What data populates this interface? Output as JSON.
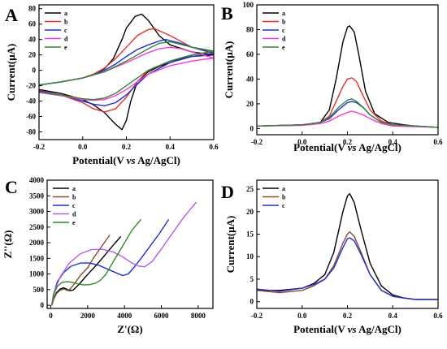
{
  "colors": {
    "a": "#000000",
    "b": "#e8302a",
    "c": "#1f2fd6",
    "d": "#ff33dd",
    "e": "#2e8b2e",
    "d_C": "#b35cf2",
    "b_D": "#8b4a2b"
  },
  "chart_data": [
    {
      "panel": "A",
      "type": "line",
      "xlabel": "Potential(V vs Ag/AgCl)",
      "ylabel": "Current(μA)",
      "xlim": [
        -0.2,
        0.6
      ],
      "ylim": [
        -90,
        85
      ],
      "xticks": [
        "-0.2",
        "0.0",
        "0.2",
        "0.4",
        "0.6"
      ],
      "yticks": [
        "-80",
        "-60",
        "-40",
        "-20",
        "0",
        "20",
        "40",
        "60",
        "80"
      ],
      "legend": "top-left",
      "grid": false,
      "series": [
        {
          "name": "a",
          "color": "#000000",
          "x": [
            -0.2,
            -0.1,
            0,
            0.05,
            0.1,
            0.14,
            0.18,
            0.2,
            0.24,
            0.27,
            0.3,
            0.35,
            0.4,
            0.5,
            0.6,
            0.55,
            0.5,
            0.45,
            0.4,
            0.35,
            0.3,
            0.25,
            0.22,
            0.2,
            0.18,
            0.15,
            0.1,
            0.05,
            0,
            -0.1,
            -0.2
          ],
          "y": [
            -19,
            -15,
            -10,
            -5,
            2,
            15,
            40,
            55,
            70,
            73,
            65,
            45,
            33,
            24,
            20,
            19,
            18,
            15,
            10,
            5,
            -2,
            -15,
            -40,
            -65,
            -77,
            -70,
            -55,
            -45,
            -38,
            -30,
            -25
          ]
        },
        {
          "name": "b",
          "color": "#e8302a",
          "x": [
            -0.2,
            -0.1,
            0,
            0.05,
            0.1,
            0.15,
            0.2,
            0.25,
            0.3,
            0.33,
            0.4,
            0.5,
            0.6,
            0.5,
            0.4,
            0.3,
            0.25,
            0.2,
            0.15,
            0.1,
            0.05,
            0,
            -0.1,
            -0.2
          ],
          "y": [
            -19,
            -15,
            -10,
            -5,
            3,
            15,
            30,
            45,
            53,
            54,
            45,
            30,
            24,
            20,
            12,
            0,
            -15,
            -35,
            -50,
            -54,
            -50,
            -42,
            -32,
            -26
          ]
        },
        {
          "name": "c",
          "color": "#1f2fd6",
          "x": [
            -0.2,
            -0.1,
            0,
            0.05,
            0.1,
            0.15,
            0.2,
            0.25,
            0.3,
            0.35,
            0.38,
            0.45,
            0.5,
            0.6,
            0.5,
            0.4,
            0.3,
            0.25,
            0.2,
            0.15,
            0.1,
            0.05,
            0,
            -0.1,
            -0.2
          ],
          "y": [
            -19,
            -15,
            -10,
            -6,
            0,
            8,
            18,
            27,
            33,
            38,
            40,
            35,
            30,
            22,
            18,
            10,
            -5,
            -18,
            -32,
            -42,
            -46,
            -44,
            -40,
            -32,
            -27
          ]
        },
        {
          "name": "d",
          "color": "#ff33dd",
          "x": [
            -0.2,
            -0.1,
            0,
            0.1,
            0.2,
            0.3,
            0.35,
            0.4,
            0.45,
            0.5,
            0.6,
            0.5,
            0.4,
            0.3,
            0.2,
            0.15,
            0.1,
            0.05,
            0,
            -0.1,
            -0.2
          ],
          "y": [
            -19,
            -15,
            -10,
            -2,
            10,
            23,
            28,
            30,
            28,
            24,
            16,
            12,
            6,
            -5,
            -25,
            -33,
            -38,
            -39,
            -38,
            -33,
            -29
          ]
        },
        {
          "name": "e",
          "color": "#2e8b2e",
          "x": [
            -0.2,
            -0.1,
            0,
            0.1,
            0.2,
            0.3,
            0.35,
            0.4,
            0.5,
            0.6,
            0.5,
            0.4,
            0.3,
            0.2,
            0.15,
            0.1,
            0.05,
            0,
            -0.1,
            -0.2
          ],
          "y": [
            -19,
            -15,
            -10,
            -2,
            12,
            28,
            35,
            37,
            30,
            25,
            20,
            12,
            0,
            -20,
            -30,
            -36,
            -38,
            -37,
            -32,
            -28
          ]
        }
      ]
    },
    {
      "panel": "B",
      "type": "line",
      "xlabel": "Potential(V vs Ag/AgCl)",
      "ylabel": "Current(μA)",
      "xlim": [
        -0.2,
        0.6
      ],
      "ylim": [
        -5,
        100
      ],
      "xticks": [
        "-0.2",
        "0.0",
        "0.2",
        "0.4",
        "0.6"
      ],
      "yticks": [
        "0",
        "20",
        "40",
        "60",
        "80",
        "100"
      ],
      "legend": "top-left",
      "grid": false,
      "series": [
        {
          "name": "a",
          "color": "#000000",
          "x": [
            -0.2,
            0,
            0.08,
            0.12,
            0.15,
            0.18,
            0.2,
            0.21,
            0.23,
            0.25,
            0.28,
            0.32,
            0.38,
            0.45,
            0.5,
            0.6
          ],
          "y": [
            2,
            3,
            5,
            15,
            40,
            70,
            82,
            83,
            78,
            60,
            30,
            12,
            5,
            3,
            2,
            1
          ]
        },
        {
          "name": "b",
          "color": "#e8302a",
          "x": [
            -0.2,
            0,
            0.08,
            0.12,
            0.15,
            0.18,
            0.2,
            0.22,
            0.24,
            0.26,
            0.3,
            0.35,
            0.4,
            0.5,
            0.6
          ],
          "y": [
            2,
            3,
            5,
            10,
            22,
            34,
            40,
            41,
            38,
            30,
            15,
            6,
            3,
            2,
            1
          ]
        },
        {
          "name": "c",
          "color": "#1f2fd6",
          "x": [
            -0.2,
            0,
            0.08,
            0.12,
            0.16,
            0.2,
            0.22,
            0.24,
            0.27,
            0.3,
            0.35,
            0.4,
            0.5,
            0.6
          ],
          "y": [
            2,
            3,
            5,
            8,
            15,
            21,
            22,
            21,
            17,
            11,
            5,
            3,
            2,
            1
          ]
        },
        {
          "name": "d",
          "color": "#ff33dd",
          "x": [
            -0.2,
            0,
            0.08,
            0.12,
            0.16,
            0.2,
            0.22,
            0.24,
            0.27,
            0.3,
            0.35,
            0.4,
            0.5,
            0.6
          ],
          "y": [
            2,
            2.5,
            4,
            6,
            10,
            13,
            14,
            13,
            11,
            8,
            4,
            2,
            1.5,
            1
          ]
        },
        {
          "name": "e",
          "color": "#2e8b2e",
          "x": [
            -0.2,
            0,
            0.08,
            0.12,
            0.16,
            0.2,
            0.22,
            0.24,
            0.27,
            0.3,
            0.35,
            0.4,
            0.5,
            0.6
          ],
          "y": [
            2,
            3,
            5,
            9,
            17,
            23,
            24,
            22,
            17,
            11,
            5,
            3,
            2,
            1
          ]
        }
      ]
    },
    {
      "panel": "C",
      "type": "line",
      "xlabel": "Z'(Ω)",
      "ylabel": "Z''(Ω)",
      "xlim": [
        -200,
        8800
      ],
      "ylim": [
        -100,
        4000
      ],
      "xticks": [
        "0",
        "2000",
        "4000",
        "6000",
        "8000"
      ],
      "yticks": [
        "0",
        "500",
        "1000",
        "1500",
        "2000",
        "2500",
        "3000",
        "3500",
        "4000"
      ],
      "legend": "top-left",
      "grid": false,
      "series": [
        {
          "name": "a",
          "color": "#000000",
          "x": [
            50,
            150,
            300,
            500,
            700,
            850,
            1000,
            1200,
            1500,
            1800,
            2100,
            2500,
            3000,
            3500,
            3800
          ],
          "y": [
            0,
            200,
            400,
            520,
            560,
            520,
            470,
            480,
            650,
            850,
            1050,
            1300,
            1650,
            2000,
            2200
          ]
        },
        {
          "name": "b",
          "color": "#8b4a2b",
          "x": [
            50,
            150,
            300,
            500,
            700,
            800,
            900,
            1050,
            1300,
            1600,
            2000,
            2300,
            2600,
            2900,
            3200
          ],
          "y": [
            0,
            180,
            370,
            480,
            520,
            500,
            470,
            520,
            700,
            950,
            1200,
            1500,
            1750,
            2000,
            2250
          ]
        },
        {
          "name": "c",
          "color": "#1f2fd6",
          "x": [
            50,
            150,
            350,
            700,
            1100,
            1600,
            2100,
            2600,
            3100,
            3500,
            3900,
            4200,
            4500,
            4900,
            5400,
            5900,
            6400
          ],
          "y": [
            0,
            350,
            750,
            1050,
            1250,
            1350,
            1350,
            1280,
            1150,
            1050,
            950,
            1000,
            1200,
            1500,
            1900,
            2300,
            2750
          ]
        },
        {
          "name": "d",
          "color": "#b35cf2",
          "x": [
            50,
            200,
            500,
            1000,
            1600,
            2200,
            2800,
            3400,
            3900,
            4400,
            4800,
            5100,
            5500,
            6000,
            6600,
            7200,
            7900
          ],
          "y": [
            0,
            450,
            900,
            1350,
            1650,
            1780,
            1790,
            1700,
            1550,
            1350,
            1250,
            1230,
            1400,
            1800,
            2300,
            2800,
            3300
          ]
        },
        {
          "name": "e",
          "color": "#2e8b2e",
          "x": [
            50,
            150,
            350,
            600,
            900,
            1200,
            1500,
            1800,
            2100,
            2400,
            2700,
            3000,
            3300,
            3600,
            4000,
            4400,
            4900
          ],
          "y": [
            0,
            350,
            600,
            730,
            760,
            730,
            680,
            650,
            660,
            700,
            800,
            1000,
            1300,
            1600,
            2000,
            2400,
            2750
          ]
        }
      ]
    },
    {
      "panel": "D",
      "type": "line",
      "xlabel": "Potential(V vs Ag/AgCl)",
      "ylabel": "Current(μA)",
      "xlim": [
        -0.2,
        0.6
      ],
      "ylim": [
        -1.5,
        27
      ],
      "xticks": [
        "-0.2",
        "0.0",
        "0.2",
        "0.4",
        "0.6"
      ],
      "yticks": [
        "0",
        "5",
        "10",
        "15",
        "20",
        "25"
      ],
      "legend": "top-left",
      "grid": false,
      "series": [
        {
          "name": "a",
          "color": "#000000",
          "x": [
            -0.2,
            -0.1,
            0,
            0.05,
            0.1,
            0.14,
            0.18,
            0.2,
            0.21,
            0.23,
            0.26,
            0.3,
            0.35,
            0.4,
            0.45,
            0.5,
            0.6
          ],
          "y": [
            2.5,
            2.5,
            3,
            4,
            6,
            11,
            20,
            23.5,
            24,
            22,
            16,
            8.5,
            3.5,
            1.5,
            0.8,
            0.5,
            0.5
          ]
        },
        {
          "name": "b",
          "color": "#8b4a2b",
          "x": [
            -0.2,
            -0.1,
            0,
            0.05,
            0.1,
            0.14,
            0.18,
            0.2,
            0.21,
            0.23,
            0.26,
            0.3,
            0.35,
            0.4,
            0.45,
            0.5,
            0.6
          ],
          "y": [
            2.5,
            2,
            2.5,
            3.5,
            5,
            8,
            13,
            15,
            15.5,
            14.5,
            11,
            6,
            2.5,
            1.2,
            0.8,
            0.5,
            0.5
          ]
        },
        {
          "name": "c",
          "color": "#1f2fd6",
          "x": [
            -0.2,
            -0.1,
            0,
            0.05,
            0.1,
            0.14,
            0.18,
            0.2,
            0.21,
            0.23,
            0.26,
            0.3,
            0.35,
            0.4,
            0.45,
            0.5,
            0.6
          ],
          "y": [
            2.8,
            2.3,
            3,
            3.8,
            5,
            7.5,
            12,
            14,
            14.2,
            13.5,
            10.5,
            6,
            2.5,
            1.2,
            0.8,
            0.5,
            0.5
          ]
        }
      ]
    }
  ]
}
